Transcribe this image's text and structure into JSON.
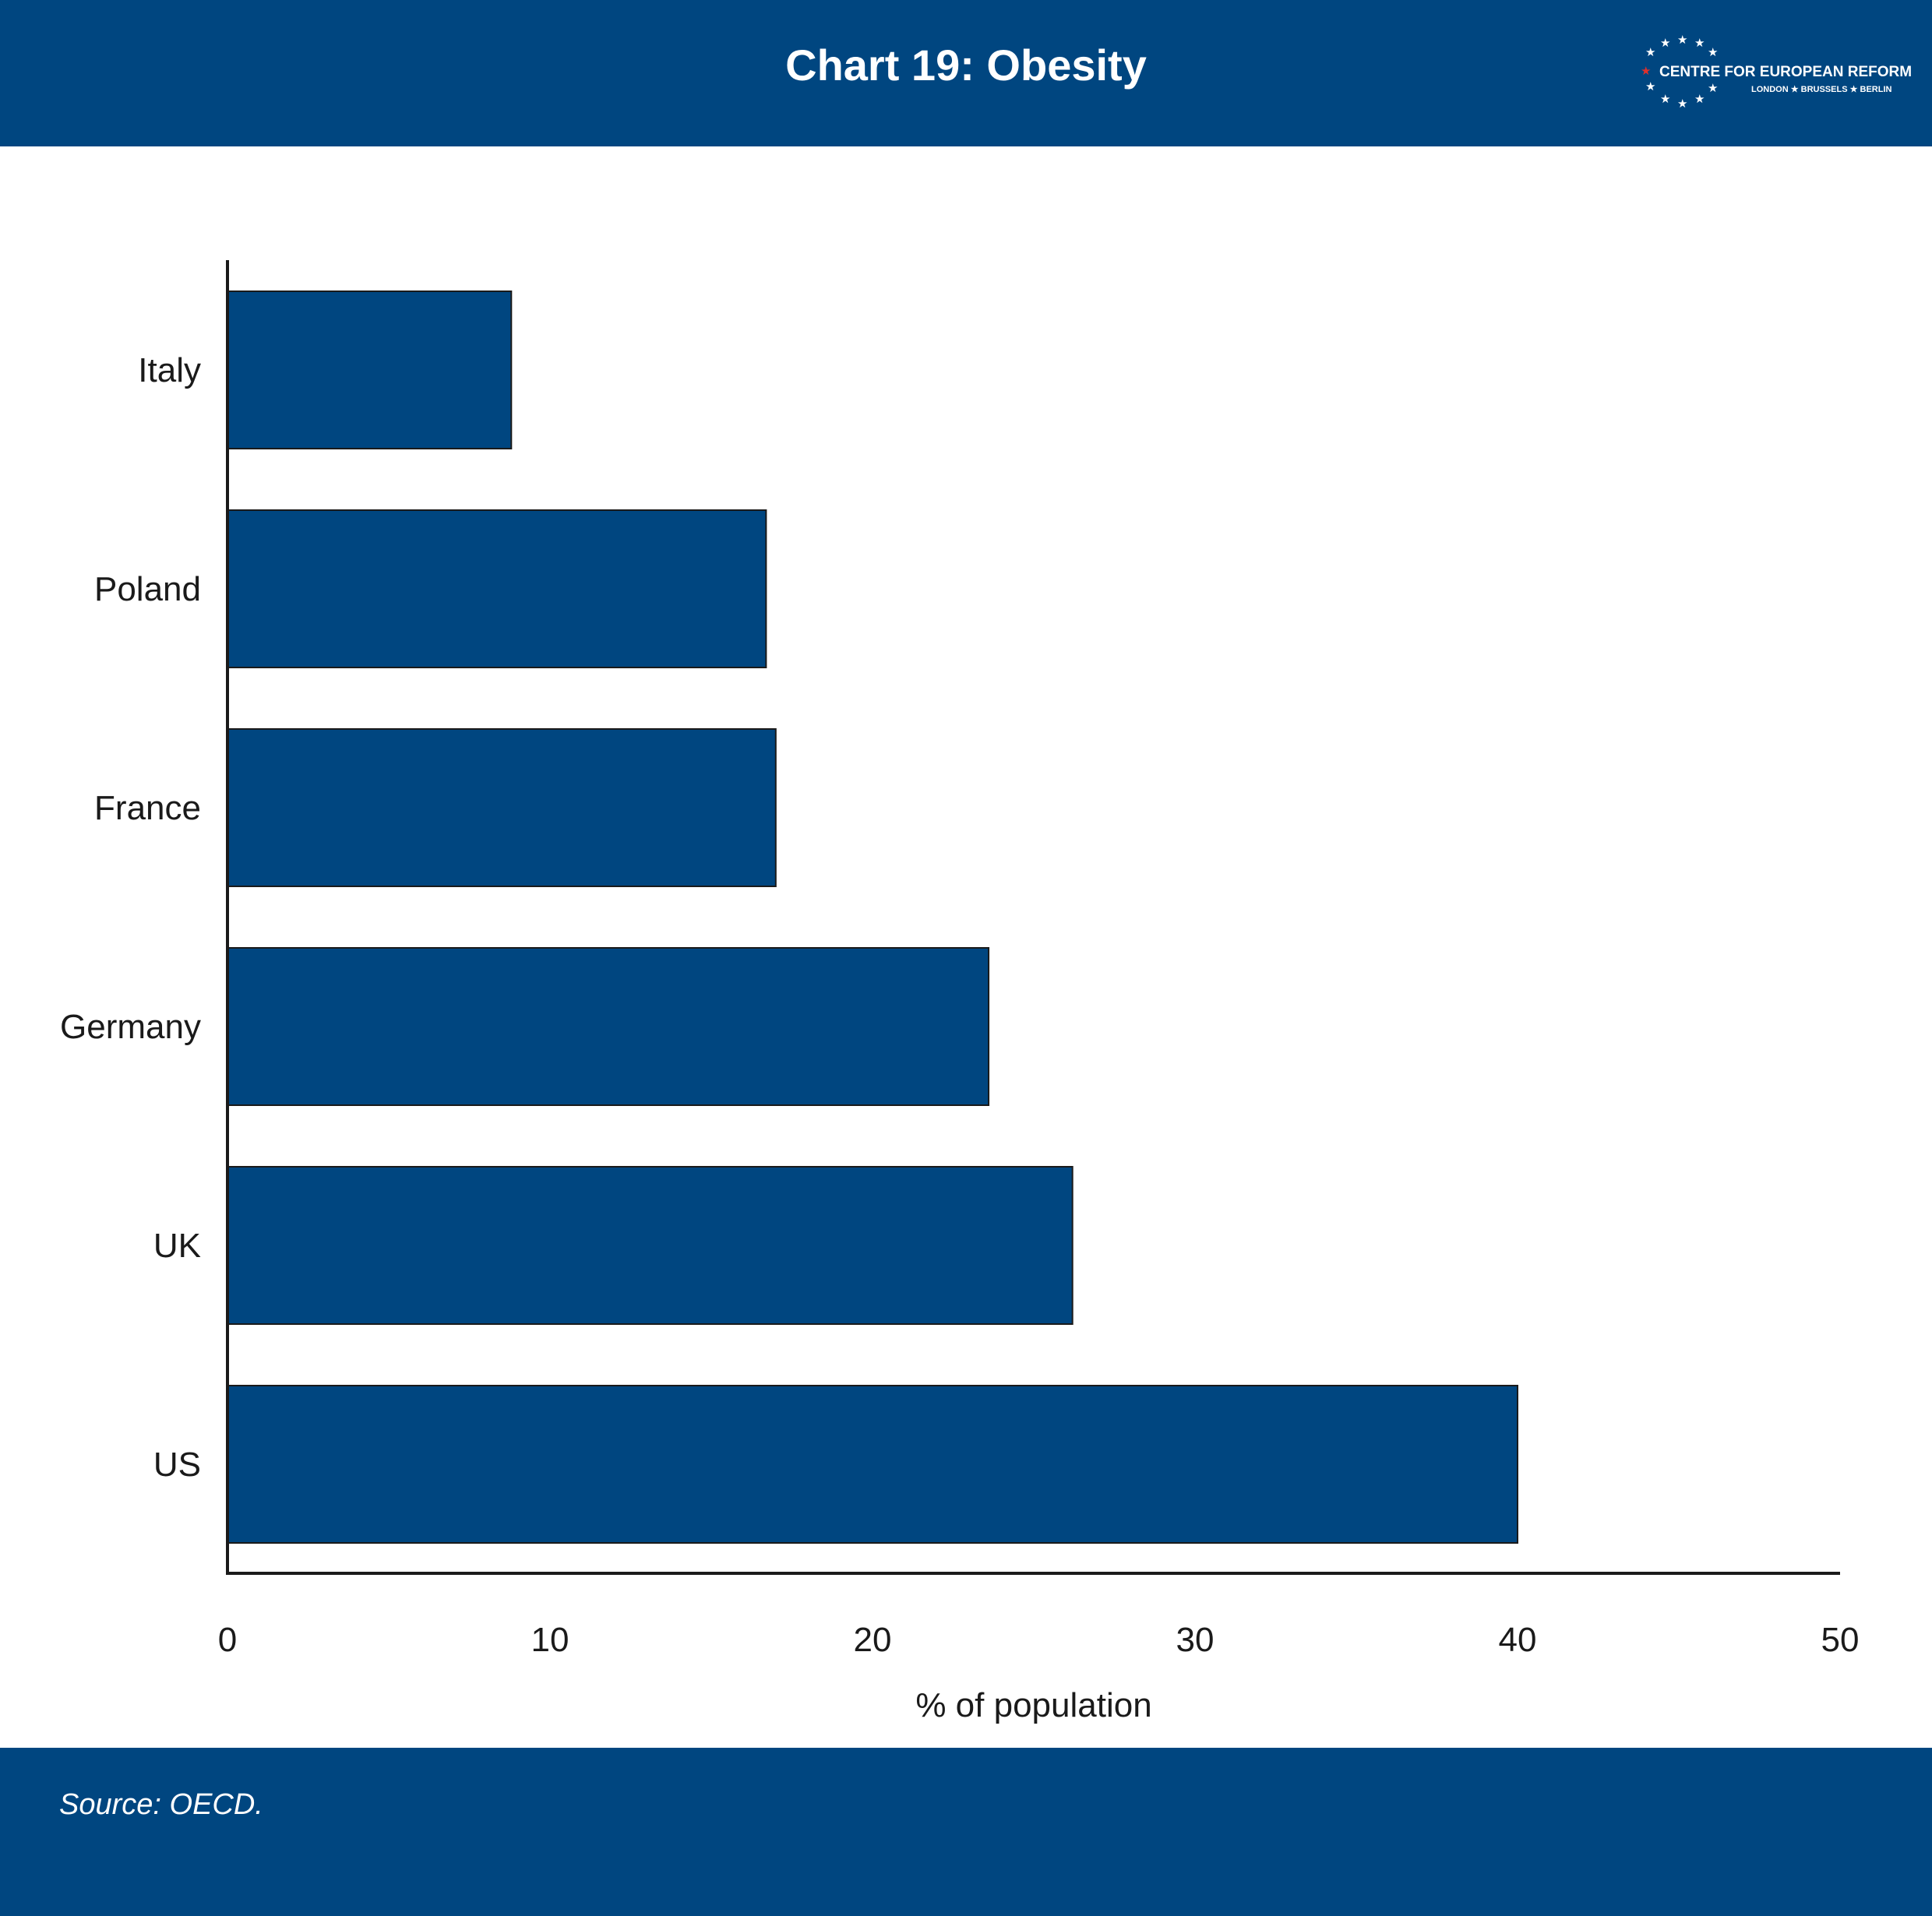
{
  "header": {
    "title": "Chart 19: Obesity",
    "background_color": "#004680"
  },
  "logo": {
    "name": "CENTRE FOR EUROPEAN REFORM",
    "cities": "LONDON ★ BRUSSELS ★ BERLIN",
    "icon": "star-circle-icon"
  },
  "footer": {
    "source": "Source: OECD.",
    "background_color": "#004680"
  },
  "chart_data": {
    "type": "bar",
    "orientation": "horizontal",
    "title": "Chart 19: Obesity",
    "categories": [
      "Italy",
      "Poland",
      "France",
      "Germany",
      "UK",
      "US"
    ],
    "values": [
      8.8,
      16.7,
      17.0,
      23.6,
      26.2,
      40.0
    ],
    "xlabel": "% of population",
    "ylabel": "",
    "xlim": [
      0,
      50
    ],
    "xticks": [
      "0",
      "10",
      "20",
      "30",
      "40",
      "50"
    ],
    "bar_color": "#004680",
    "grid": false,
    "legend": "none"
  }
}
